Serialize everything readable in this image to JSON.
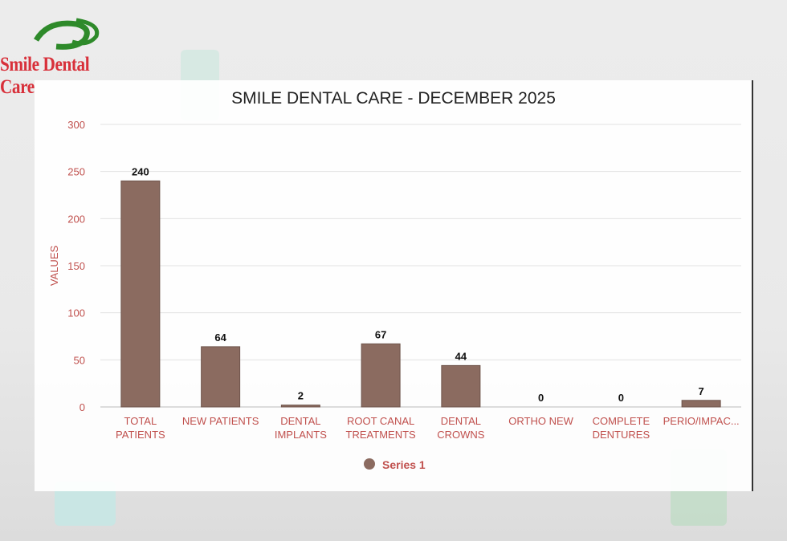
{
  "logo": {
    "text": "Smile Dental Care"
  },
  "chart_data": {
    "type": "bar",
    "title": "SMILE DENTAL CARE - DECEMBER 2025",
    "xlabel": "",
    "ylabel": "VALUES",
    "ylim": [
      0,
      300
    ],
    "yticks": [
      0,
      50,
      100,
      150,
      200,
      250,
      300
    ],
    "grid": true,
    "legend_position": "bottom",
    "categories": [
      [
        "TOTAL",
        "PATIENTS"
      ],
      [
        "NEW PATIENTS"
      ],
      [
        "DENTAL",
        "IMPLANTS"
      ],
      [
        "ROOT CANAL",
        "TREATMENTS"
      ],
      [
        "DENTAL",
        "CROWNS"
      ],
      [
        "ORTHO NEW"
      ],
      [
        "COMPLETE",
        "DENTURES"
      ],
      [
        "PERIO/IMPAC..."
      ]
    ],
    "series": [
      {
        "name": "Series 1",
        "values": [
          240,
          64,
          2,
          67,
          44,
          0,
          0,
          7
        ],
        "color": "#8b6b60"
      }
    ],
    "colors": {
      "axis_text": "#c0504d",
      "grid": "#e3e3e3",
      "title": "#222222"
    }
  }
}
